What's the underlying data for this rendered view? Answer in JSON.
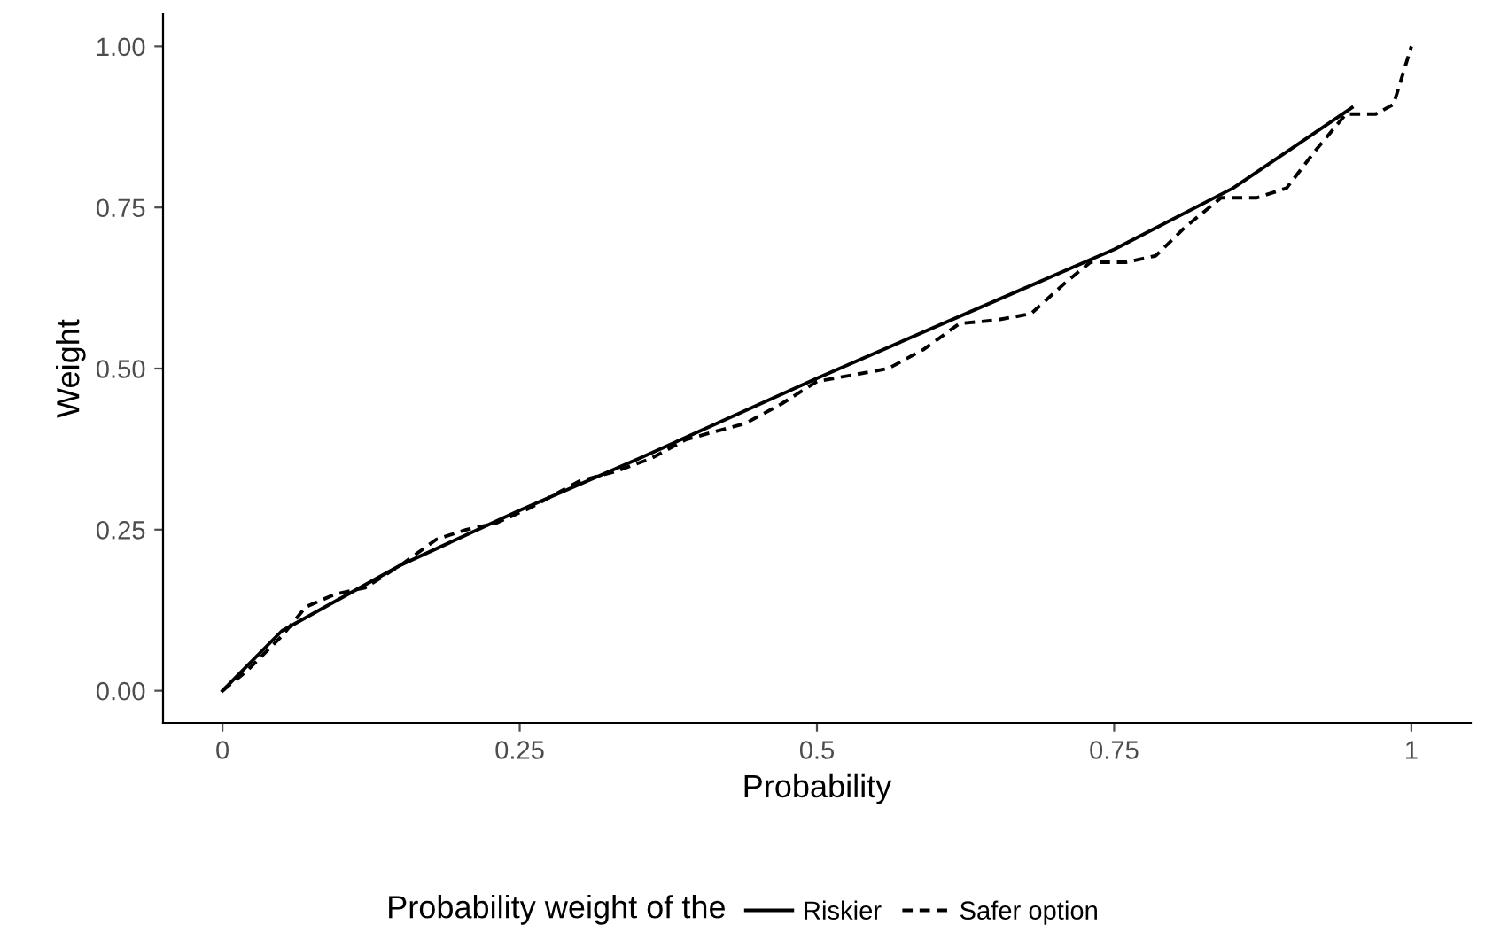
{
  "chart_data": {
    "type": "line",
    "xlabel": "Probability",
    "ylabel": "Weight",
    "legend_title": "Probability weight of the",
    "xlim": [
      -0.05,
      1.05
    ],
    "ylim": [
      -0.05,
      1.05
    ],
    "xticks": [
      0,
      0.25,
      0.5,
      0.75,
      1
    ],
    "yticks": [
      {
        "value": 0,
        "label": "0.00"
      },
      {
        "value": 0.25,
        "label": "0.25"
      },
      {
        "value": 0.5,
        "label": "0.50"
      },
      {
        "value": 0.75,
        "label": "0.75"
      },
      {
        "value": 1,
        "label": "1.00"
      }
    ],
    "grid": false,
    "legend": "bottom",
    "marker": "none",
    "series": [
      {
        "name": "Riskier",
        "color": "#000000",
        "line_style": "solid",
        "x": [
          0,
          0.05,
          0.15,
          0.25,
          0.35,
          0.5,
          0.65,
          0.75,
          0.85,
          0.95
        ],
        "values": [
          0,
          0.093,
          0.195,
          0.28,
          0.36,
          0.485,
          0.605,
          0.685,
          0.78,
          0.905
        ]
      },
      {
        "name": "Safer option",
        "color": "#000000",
        "line_style": "dashed",
        "x": [
          0,
          0.02,
          0.05,
          0.07,
          0.095,
          0.12,
          0.15,
          0.18,
          0.205,
          0.23,
          0.26,
          0.3,
          0.33,
          0.36,
          0.39,
          0.42,
          0.44,
          0.47,
          0.5,
          0.53,
          0.56,
          0.59,
          0.62,
          0.65,
          0.68,
          0.71,
          0.73,
          0.76,
          0.785,
          0.81,
          0.84,
          0.87,
          0.895,
          0.92,
          0.945,
          0.97,
          0.985,
          1.0
        ],
        "values": [
          0,
          0.03,
          0.085,
          0.13,
          0.15,
          0.16,
          0.195,
          0.235,
          0.25,
          0.26,
          0.285,
          0.325,
          0.34,
          0.36,
          0.39,
          0.405,
          0.415,
          0.445,
          0.48,
          0.49,
          0.5,
          0.53,
          0.57,
          0.575,
          0.585,
          0.635,
          0.665,
          0.665,
          0.675,
          0.72,
          0.765,
          0.765,
          0.78,
          0.84,
          0.895,
          0.895,
          0.91,
          1.0
        ]
      }
    ]
  }
}
